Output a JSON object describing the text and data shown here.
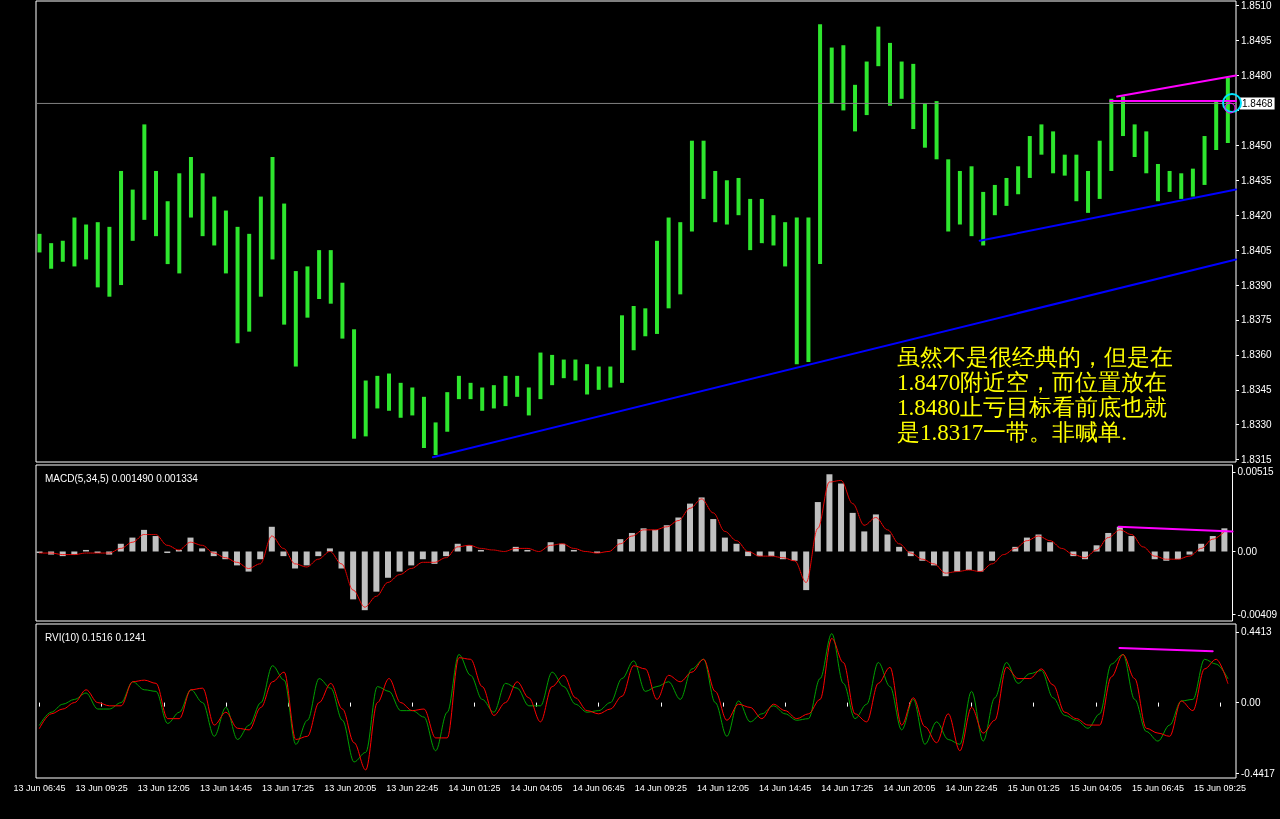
{
  "chart_data": [
    {
      "type": "bar",
      "x": [
        "--06-13T06:45",
        "--06-13T07:15",
        "--06-13T07:45",
        "--06-13T08:15",
        "--06-13T08:45",
        "--06-13T09:15",
        "--06-13T09:45",
        "--06-13T10:15",
        "--06-13T10:45",
        "--06-13T11:15",
        "--06-13T11:45",
        "--06-13T12:15",
        "--06-13T12:45",
        "--06-13T13:15",
        "--06-13T13:45",
        "--06-13T14:15",
        "--06-13T14:45",
        "--06-13T15:15",
        "--06-13T15:45",
        "--06-13T16:15",
        "--06-13T16:45",
        "--06-13T17:15",
        "--06-13T17:45",
        "--06-13T18:15",
        "--06-13T18:45",
        "--06-13T19:15",
        "--06-13T19:45",
        "--06-13T20:15",
        "--06-13T20:45",
        "--06-13T21:15",
        "--06-13T21:45",
        "--06-13T22:15",
        "--06-13T22:45",
        "--06-13T23:15",
        "--06-13T23:45",
        "--06-14T00:15",
        "--06-14T00:45",
        "--06-14T01:15",
        "--06-14T01:45",
        "--06-14T02:15",
        "--06-14T02:45",
        "--06-14T03:15",
        "--06-14T03:45",
        "--06-14T04:15",
        "--06-14T04:45",
        "--06-14T05:15",
        "--06-14T05:45",
        "--06-14T06:15",
        "--06-14T06:45",
        "--06-14T07:15",
        "--06-14T07:45",
        "--06-14T08:15",
        "--06-14T08:45",
        "--06-14T09:15",
        "--06-14T09:45",
        "--06-14T10:15",
        "--06-14T10:45",
        "--06-14T11:15",
        "--06-14T11:45",
        "--06-14T12:15",
        "--06-14T12:45",
        "--06-14T13:15",
        "--06-14T13:45",
        "--06-14T14:15",
        "--06-14T14:45",
        "--06-14T15:15",
        "--06-14T15:45",
        "--06-14T16:15",
        "--06-14T16:45",
        "--06-14T17:15",
        "--06-14T17:45",
        "--06-14T18:15",
        "--06-14T18:45",
        "--06-14T19:15",
        "--06-14T19:45",
        "--06-14T20:15",
        "--06-14T20:45",
        "--06-14T21:15",
        "--06-14T21:45",
        "--06-14T22:15",
        "--06-14T22:45",
        "--06-14T23:15",
        "--06-14T23:45",
        "--06-15T00:15",
        "--06-15T00:45",
        "--06-15T01:15",
        "--06-15T01:45",
        "--06-15T02:15",
        "--06-15T02:45",
        "--06-15T03:15",
        "--06-15T03:45",
        "--06-15T04:15",
        "--06-15T04:45",
        "--06-15T05:15",
        "--06-15T05:45",
        "--06-15T06:15",
        "--06-15T06:45",
        "--06-15T07:15",
        "--06-15T07:45",
        "--06-15T08:15",
        "--06-15T08:45",
        "--06-15T09:15",
        "--06-15T09:45"
      ],
      "xlim": [
        "--06-13T06:36",
        "--06-15T10:06"
      ],
      "ylim": [
        1.8314,
        1.8512
      ],
      "yticks": [
        {
          "value": 1.8315,
          "label": "1.8315"
        },
        {
          "value": 1.833,
          "label": "1.8330"
        },
        {
          "value": 1.8345,
          "label": "1.8345"
        },
        {
          "value": 1.836,
          "label": "1.8360"
        },
        {
          "value": 1.8375,
          "label": "1.8375"
        },
        {
          "value": 1.839,
          "label": "1.8390"
        },
        {
          "value": 1.8405,
          "label": "1.8405"
        },
        {
          "value": 1.842,
          "label": "1.8420"
        },
        {
          "value": 1.8435,
          "label": "1.8435"
        },
        {
          "value": 1.845,
          "label": "1.8450"
        },
        {
          "value": 1.8465,
          "label": null
        },
        {
          "value": 1.848,
          "label": "1.8480"
        },
        {
          "value": 1.8495,
          "label": "1.8495"
        },
        {
          "value": 1.851,
          "label": "1.8510"
        }
      ],
      "tick_labels": "y",
      "series": [
        {
          "color": "#2ee62e",
          "base": [
            1.8404,
            1.8397,
            1.84,
            1.8398,
            1.8401,
            1.8389,
            1.8385,
            1.839,
            1.8409,
            1.8418,
            1.8411,
            1.8399,
            1.8395,
            1.8419,
            1.8411,
            1.8407,
            1.8395,
            1.8365,
            1.837,
            1.8385,
            1.8401,
            1.8373,
            1.8355,
            1.8376,
            1.8384,
            1.8382,
            1.8367,
            1.8324,
            1.8325,
            1.8337,
            1.8336,
            1.8333,
            1.8334,
            1.832,
            1.8317,
            1.8327,
            1.8341,
            1.8341,
            1.8336,
            1.8337,
            1.8338,
            1.8342,
            1.8334,
            1.8341,
            1.8347,
            1.835,
            1.8349,
            1.8343,
            1.8345,
            1.8346,
            1.8348,
            1.8362,
            1.8368,
            1.8369,
            1.838,
            1.8386,
            1.8413,
            1.8427,
            1.8417,
            1.8416,
            1.842,
            1.8405,
            1.8408,
            1.8407,
            1.8398,
            1.8356,
            1.8357,
            1.8399,
            1.8468,
            1.8465,
            1.8456,
            1.8463,
            1.8484,
            1.8467,
            1.847,
            1.8457,
            1.8449,
            1.8444,
            1.8413,
            1.8416,
            1.8411,
            1.8407,
            1.842,
            1.8424,
            1.8429,
            1.8436,
            1.8446,
            1.8438,
            1.8437,
            1.8426,
            1.8421,
            1.8427,
            1.8439,
            1.8454,
            1.8445,
            1.8438,
            1.8426,
            1.843,
            1.8427,
            1.8428,
            1.8433,
            1.8448,
            1.8451
          ],
          "values": [
            0.0008,
            0.0011,
            0.0009,
            0.0021,
            0.0015,
            0.0028,
            0.003,
            0.0049,
            0.0022,
            0.0041,
            0.0028,
            0.0027,
            0.0043,
            0.0026,
            0.0027,
            0.0021,
            0.0027,
            0.005,
            0.0042,
            0.0043,
            0.0044,
            0.0052,
            0.0041,
            0.0022,
            0.0021,
            0.0023,
            0.0024,
            0.0047,
            0.0024,
            0.0014,
            0.0016,
            0.0015,
            0.0012,
            0.0022,
            0.0014,
            0.0017,
            0.001,
            0.0007,
            0.001,
            0.001,
            0.0013,
            0.0009,
            0.0012,
            0.002,
            0.0013,
            0.0008,
            0.0009,
            0.0013,
            0.001,
            0.0009,
            0.0029,
            0.0019,
            0.0012,
            0.004,
            0.0039,
            0.0031,
            0.0039,
            0.0025,
            0.0022,
            0.0019,
            0.0016,
            0.0022,
            0.0019,
            0.0013,
            0.0019,
            0.0063,
            0.0062,
            0.0103,
            0.0024,
            0.0028,
            0.002,
            0.0023,
            0.0017,
            0.0027,
            0.0016,
            0.0028,
            0.0019,
            0.0025,
            0.0031,
            0.0023,
            0.003,
            0.0023,
            0.0013,
            0.0012,
            0.0012,
            0.0018,
            0.0013,
            0.0018,
            0.0009,
            0.002,
            0.0018,
            0.0025,
            0.0031,
            0.0017,
            0.0014,
            0.0018,
            0.0016,
            0.0009,
            0.0011,
            0.0012,
            0.0021,
            0.0021,
            0.0028
          ]
        },
        {
          "type": "line",
          "color": "#0000ff",
          "x": [
            "--06-13T23:38",
            "--06-15T10:06"
          ],
          "values": [
            1.8316,
            1.8401
          ]
        },
        {
          "type": "line",
          "color": "#0000ff",
          "x": [
            "--06-14T23:06",
            "--06-15T10:06"
          ],
          "values": [
            1.8409,
            1.8431
          ]
        },
        {
          "type": "line",
          "color": "#ff00ff",
          "x": [
            "--06-15T05:00",
            "--06-15T10:06"
          ],
          "values": [
            1.8471,
            1.848
          ]
        },
        {
          "type": "line",
          "color": "#ff00ff",
          "x": [
            "--06-15T04:42",
            "--06-15T10:06"
          ],
          "values": [
            1.8469,
            1.8469
          ]
        }
      ],
      "ref_lines": [
        {
          "axis": "y",
          "value": 1.8468,
          "label": "1.8468",
          "color": "#808080"
        }
      ],
      "annotations": [
        "虽然不是很经典的，但是在1.8470附近空，而位置放在1.8480止亏目标看前底也就是1.8317一带。非喊单."
      ]
    },
    {
      "type": "bar",
      "title": "MACD(5,34,5) 0.001490 0.001334",
      "x": [
        "--06-13T06:45",
        "--06-13T07:15",
        "--06-13T07:45",
        "--06-13T08:15",
        "--06-13T08:45",
        "--06-13T09:15",
        "--06-13T09:45",
        "--06-13T10:15",
        "--06-13T10:45",
        "--06-13T11:15",
        "--06-13T11:45",
        "--06-13T12:15",
        "--06-13T12:45",
        "--06-13T13:15",
        "--06-13T13:45",
        "--06-13T14:15",
        "--06-13T14:45",
        "--06-13T15:15",
        "--06-13T15:45",
        "--06-13T16:15",
        "--06-13T16:45",
        "--06-13T17:15",
        "--06-13T17:45",
        "--06-13T18:15",
        "--06-13T18:45",
        "--06-13T19:15",
        "--06-13T19:45",
        "--06-13T20:15",
        "--06-13T20:45",
        "--06-13T21:15",
        "--06-13T21:45",
        "--06-13T22:15",
        "--06-13T22:45",
        "--06-13T23:15",
        "--06-13T23:45",
        "--06-14T00:15",
        "--06-14T00:45",
        "--06-14T01:15",
        "--06-14T01:45",
        "--06-14T02:15",
        "--06-14T02:45",
        "--06-14T03:15",
        "--06-14T03:45",
        "--06-14T04:15",
        "--06-14T04:45",
        "--06-14T05:15",
        "--06-14T05:45",
        "--06-14T06:15",
        "--06-14T06:45",
        "--06-14T07:15",
        "--06-14T07:45",
        "--06-14T08:15",
        "--06-14T08:45",
        "--06-14T09:15",
        "--06-14T09:45",
        "--06-14T10:15",
        "--06-14T10:45",
        "--06-14T11:15",
        "--06-14T11:45",
        "--06-14T12:15",
        "--06-14T12:45",
        "--06-14T13:15",
        "--06-14T13:45",
        "--06-14T14:15",
        "--06-14T14:45",
        "--06-14T15:15",
        "--06-14T15:45",
        "--06-14T16:15",
        "--06-14T16:45",
        "--06-14T17:15",
        "--06-14T17:45",
        "--06-14T18:15",
        "--06-14T18:45",
        "--06-14T19:15",
        "--06-14T19:45",
        "--06-14T20:15",
        "--06-14T20:45",
        "--06-14T21:15",
        "--06-14T21:45",
        "--06-14T22:15",
        "--06-14T22:45",
        "--06-14T23:15",
        "--06-14T23:45",
        "--06-15T00:15",
        "--06-15T00:45",
        "--06-15T01:15",
        "--06-15T01:45",
        "--06-15T02:15",
        "--06-15T02:45",
        "--06-15T03:15",
        "--06-15T03:45",
        "--06-15T04:15",
        "--06-15T04:45",
        "--06-15T05:15",
        "--06-15T05:45",
        "--06-15T06:15",
        "--06-15T06:45",
        "--06-15T07:15",
        "--06-15T07:45",
        "--06-15T08:15",
        "--06-15T08:45",
        "--06-15T09:15",
        "--06-15T09:45"
      ],
      "xlim": [
        "--06-13T06:36",
        "--06-15T10:06"
      ],
      "ylim": [
        -0.0045,
        0.0056
      ],
      "yticks": [
        {
          "value": 0.00515,
          "label": "0.00515"
        },
        {
          "value": 0,
          "label": "0.00"
        },
        {
          "value": -0.00409,
          "label": "-0.00409"
        }
      ],
      "tick_labels": "y",
      "series": [
        {
          "color": "#c0c0c0",
          "values": [
            -0.0001,
            -0.0002,
            -0.0003,
            -0.0002,
            0.0001,
            -0.0001,
            -0.0002,
            0.0005,
            0.0009,
            0.0014,
            0.001,
            -0.0001,
            0.0001,
            0.0009,
            0.0002,
            -0.0003,
            -0.0005,
            -0.0009,
            -0.0013,
            -0.0005,
            0.0016,
            -0.0003,
            -0.0011,
            -0.0009,
            -0.0003,
            0.0002,
            -0.0011,
            -0.0031,
            -0.0038,
            -0.0026,
            -0.0017,
            -0.0013,
            -0.0009,
            -0.0005,
            -0.0008,
            -0.0003,
            0.0005,
            0.0004,
            0.0001,
            0.0,
            0.0,
            0.0003,
            0.0001,
            0.0,
            0.0006,
            0.0005,
            0.0001,
            0.0,
            -0.0001,
            0.0,
            0.0008,
            0.0012,
            0.0015,
            0.0014,
            0.0017,
            0.0022,
            0.0031,
            0.0035,
            0.0021,
            0.0009,
            0.0005,
            -0.0003,
            -0.0003,
            -0.0003,
            -0.0005,
            -0.0006,
            -0.0025,
            0.0032,
            0.005,
            0.0044,
            0.0025,
            0.0013,
            0.0024,
            0.0011,
            0.0003,
            -0.0003,
            -0.0006,
            -0.0009,
            -0.0016,
            -0.0013,
            -0.0012,
            -0.0013,
            -0.0006,
            0.0,
            0.0003,
            0.0009,
            0.0011,
            0.0006,
            0.0,
            -0.0003,
            -0.0005,
            0.0004,
            0.0012,
            0.0016,
            0.001,
            0.0,
            -0.0005,
            -0.0006,
            -0.0005,
            -0.0002,
            0.0005,
            0.001,
            0.0015
          ]
        },
        {
          "type": "line",
          "color": "#ff0000",
          "line_style": "dotted",
          "values": [
            -0.0001,
            -0.0001,
            -0.0002,
            -0.0002,
            -0.0001,
            -0.0001,
            -0.0001,
            0.0002,
            0.0006,
            0.0011,
            0.0011,
            0.0004,
            0.0001,
            0.0006,
            0.0004,
            -0.0001,
            -0.0004,
            -0.0007,
            -0.0011,
            -0.0008,
            0.001,
            0.0002,
            -0.0008,
            -0.001,
            -0.0005,
            0.0,
            -0.0008,
            -0.0025,
            -0.0036,
            -0.0029,
            -0.002,
            -0.0015,
            -0.0011,
            -0.0007,
            -0.0007,
            -0.0004,
            0.0003,
            0.0004,
            0.0002,
            0.0001,
            0.0,
            0.0002,
            0.0002,
            0.0,
            0.0004,
            0.0005,
            0.0002,
            0.0,
            -0.0001,
            0.0,
            0.0005,
            0.001,
            0.0014,
            0.0014,
            0.0016,
            0.002,
            0.0028,
            0.0034,
            0.0025,
            0.0013,
            0.0007,
            0.0,
            -0.0003,
            -0.0003,
            -0.0004,
            -0.0006,
            -0.002,
            0.0015,
            0.0045,
            0.0046,
            0.0031,
            0.0017,
            0.0022,
            0.0014,
            0.0005,
            -0.0001,
            -0.0005,
            -0.0008,
            -0.0014,
            -0.0013,
            -0.0012,
            -0.0013,
            -0.0008,
            -0.0002,
            0.0002,
            0.0007,
            0.001,
            0.0007,
            0.0002,
            -0.0002,
            -0.0004,
            0.0001,
            0.0009,
            0.0014,
            0.0011,
            0.0003,
            -0.0003,
            -0.0005,
            -0.0005,
            -0.0003,
            0.0002,
            0.0008,
            0.0013
          ]
        },
        {
          "type": "line",
          "color": "#ff00ff",
          "x": [
            "--06-15T05:12",
            "--06-15T10:06"
          ],
          "values": [
            0.0016,
            0.0013
          ]
        }
      ]
    },
    {
      "type": "line",
      "title": "RVI(10) 0.1516 0.1241",
      "x": [
        "--06-13T06:45",
        "--06-13T07:15",
        "--06-13T07:45",
        "--06-13T08:15",
        "--06-13T08:45",
        "--06-13T09:15",
        "--06-13T09:45",
        "--06-13T10:15",
        "--06-13T10:45",
        "--06-13T11:15",
        "--06-13T11:45",
        "--06-13T12:15",
        "--06-13T12:45",
        "--06-13T13:15",
        "--06-13T13:45",
        "--06-13T14:15",
        "--06-13T14:45",
        "--06-13T15:15",
        "--06-13T15:45",
        "--06-13T16:15",
        "--06-13T16:45",
        "--06-13T17:15",
        "--06-13T17:45",
        "--06-13T18:15",
        "--06-13T18:45",
        "--06-13T19:15",
        "--06-13T19:45",
        "--06-13T20:15",
        "--06-13T20:45",
        "--06-13T21:15",
        "--06-13T21:45",
        "--06-13T22:15",
        "--06-13T22:45",
        "--06-13T23:15",
        "--06-13T23:45",
        "--06-14T00:15",
        "--06-14T00:45",
        "--06-14T01:15",
        "--06-14T01:45",
        "--06-14T02:15",
        "--06-14T02:45",
        "--06-14T03:15",
        "--06-14T03:45",
        "--06-14T04:15",
        "--06-14T04:45",
        "--06-14T05:15",
        "--06-14T05:45",
        "--06-14T06:15",
        "--06-14T06:45",
        "--06-14T07:15",
        "--06-14T07:45",
        "--06-14T08:15",
        "--06-14T08:45",
        "--06-14T09:15",
        "--06-14T09:45",
        "--06-14T10:15",
        "--06-14T10:45",
        "--06-14T11:15",
        "--06-14T11:45",
        "--06-14T12:15",
        "--06-14T12:45",
        "--06-14T13:15",
        "--06-14T13:45",
        "--06-14T14:15",
        "--06-14T14:45",
        "--06-14T15:15",
        "--06-14T15:45",
        "--06-14T16:15",
        "--06-14T16:45",
        "--06-14T17:15",
        "--06-14T17:45",
        "--06-14T18:15",
        "--06-14T18:45",
        "--06-14T19:15",
        "--06-14T19:45",
        "--06-14T20:15",
        "--06-14T20:45",
        "--06-14T21:15",
        "--06-14T21:45",
        "--06-14T22:15",
        "--06-14T22:45",
        "--06-14T23:15",
        "--06-14T23:45",
        "--06-15T00:15",
        "--06-15T00:45",
        "--06-15T01:15",
        "--06-15T01:45",
        "--06-15T02:15",
        "--06-15T02:45",
        "--06-15T03:15",
        "--06-15T03:45",
        "--06-15T04:15",
        "--06-15T04:45",
        "--06-15T05:15",
        "--06-15T05:45",
        "--06-15T06:15",
        "--06-15T06:45",
        "--06-15T07:15",
        "--06-15T07:45",
        "--06-15T08:15",
        "--06-15T08:45",
        "--06-15T09:15",
        "--06-15T09:45"
      ],
      "xlim": [
        "--06-13T06:36",
        "--06-15T10:06"
      ],
      "ylim": [
        -0.47,
        0.49
      ],
      "xticks": [
        {
          "value": "--06-13T06:45",
          "label": "13 Jun 06:45"
        },
        {
          "value": "--06-13T09:25",
          "label": "13 Jun 09:25"
        },
        {
          "value": "--06-13T12:05",
          "label": "13 Jun 12:05"
        },
        {
          "value": "--06-13T14:45",
          "label": "13 Jun 14:45"
        },
        {
          "value": "--06-13T17:25",
          "label": "13 Jun 17:25"
        },
        {
          "value": "--06-13T20:05",
          "label": "13 Jun 20:05"
        },
        {
          "value": "--06-13T22:45",
          "label": "13 Jun 22:45"
        },
        {
          "value": "--06-14T01:25",
          "label": "14 Jun 01:25"
        },
        {
          "value": "--06-14T04:05",
          "label": "14 Jun 04:05"
        },
        {
          "value": "--06-14T06:45",
          "label": "14 Jun 06:45"
        },
        {
          "value": "--06-14T09:25",
          "label": "14 Jun 09:25"
        },
        {
          "value": "--06-14T12:05",
          "label": "14 Jun 12:05"
        },
        {
          "value": "--06-14T14:45",
          "label": "14 Jun 14:45"
        },
        {
          "value": "--06-14T17:25",
          "label": "14 Jun 17:25"
        },
        {
          "value": "--06-14T20:05",
          "label": "14 Jun 20:05"
        },
        {
          "value": "--06-14T22:45",
          "label": "14 Jun 22:45"
        },
        {
          "value": "--06-15T01:25",
          "label": "15 Jun 01:25"
        },
        {
          "value": "--06-15T04:05",
          "label": "15 Jun 04:05"
        },
        {
          "value": "--06-15T06:45",
          "label": "15 Jun 06:45"
        },
        {
          "value": "--06-15T09:25",
          "label": "15 Jun 09:25"
        }
      ],
      "yticks": [
        {
          "value": 0.4413,
          "label": "0.4413"
        },
        {
          "value": 0,
          "label": "0.00"
        },
        {
          "value": -0.4417,
          "label": "-0.4417"
        }
      ],
      "series": [
        {
          "color": "#00a000",
          "values": [
            -0.14,
            -0.06,
            -0.01,
            0.02,
            0.06,
            -0.04,
            -0.04,
            0.0,
            0.13,
            0.08,
            0.07,
            -0.13,
            -0.06,
            0.08,
            0.0,
            -0.21,
            -0.03,
            -0.23,
            -0.14,
            0.0,
            0.23,
            0.14,
            -0.26,
            -0.11,
            0.15,
            0.09,
            -0.11,
            -0.37,
            -0.31,
            0.1,
            0.07,
            -0.05,
            -0.05,
            -0.09,
            -0.3,
            -0.06,
            0.3,
            0.17,
            0.02,
            -0.06,
            0.12,
            0.09,
            -0.02,
            -0.02,
            0.19,
            0.1,
            -0.01,
            -0.06,
            -0.05,
            0.0,
            0.15,
            0.26,
            0.07,
            0.1,
            0.13,
            0.02,
            0.21,
            0.27,
            0.0,
            -0.21,
            0.01,
            -0.12,
            -0.07,
            -0.02,
            -0.07,
            -0.11,
            -0.1,
            0.15,
            0.43,
            0.12,
            -0.1,
            -0.01,
            0.25,
            0.1,
            -0.17,
            0.02,
            -0.26,
            -0.12,
            -0.23,
            -0.26,
            0.07,
            -0.24,
            0.03,
            0.25,
            0.12,
            0.18,
            0.2,
            0.03,
            -0.08,
            -0.11,
            -0.16,
            -0.07,
            0.24,
            0.3,
            0.02,
            -0.18,
            -0.24,
            -0.14,
            0.01,
            0.02,
            0.27,
            0.24,
            0.15
          ]
        },
        {
          "color": "#ff0000",
          "values": [
            -0.16,
            -0.07,
            -0.04,
            0.0,
            0.08,
            0.0,
            -0.02,
            -0.02,
            0.13,
            0.14,
            0.12,
            -0.1,
            -0.1,
            0.08,
            0.09,
            -0.14,
            -0.06,
            -0.16,
            -0.17,
            -0.03,
            0.13,
            0.19,
            -0.23,
            -0.21,
            0.0,
            0.12,
            -0.04,
            -0.25,
            -0.42,
            0.0,
            0.15,
            0.0,
            -0.05,
            -0.04,
            -0.22,
            -0.22,
            0.28,
            0.27,
            0.1,
            -0.08,
            0.0,
            0.13,
            0.03,
            -0.12,
            0.1,
            0.17,
            0.03,
            -0.05,
            -0.07,
            -0.04,
            0.04,
            0.23,
            0.21,
            0.02,
            0.17,
            0.13,
            0.19,
            0.27,
            0.07,
            -0.11,
            -0.01,
            -0.03,
            -0.1,
            -0.01,
            -0.05,
            -0.1,
            -0.07,
            0.02,
            0.4,
            0.25,
            -0.07,
            -0.12,
            0.12,
            0.22,
            -0.14,
            0.03,
            -0.15,
            -0.25,
            -0.07,
            -0.3,
            -0.03,
            -0.19,
            -0.11,
            0.22,
            0.15,
            0.15,
            0.21,
            0.11,
            -0.06,
            -0.1,
            -0.14,
            -0.14,
            0.16,
            0.3,
            0.15,
            -0.16,
            -0.19,
            -0.21,
            0.01,
            -0.05,
            0.21,
            0.27,
            0.12
          ]
        },
        {
          "color": "#ff00ff",
          "x": [
            "--06-15T05:06",
            "--06-15T09:06"
          ],
          "values": [
            0.34,
            0.32
          ]
        }
      ]
    }
  ]
}
